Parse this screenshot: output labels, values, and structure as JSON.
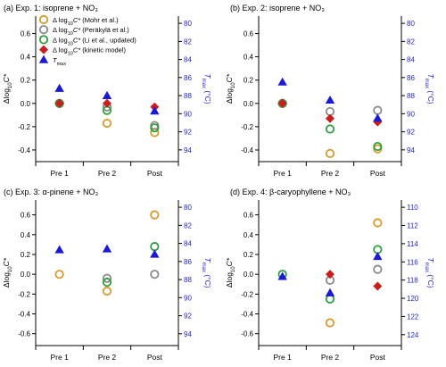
{
  "colors": {
    "mohr": "#d99a2b",
    "perakyla": "#8a8a8a",
    "li": "#2e9e3f",
    "kinetic": "#c81e1e",
    "tmax": "#1a1ad6",
    "right_axis": "#1f1fd6"
  },
  "legend": [
    {
      "key": "mohr",
      "prefix": "Δ log",
      "sub": "10",
      "mid": "C*",
      "suffix": " (Mohr et al.)",
      "marker": "circle"
    },
    {
      "key": "perakyla",
      "prefix": "Δ log",
      "sub": "10",
      "mid": "C*",
      "suffix": " (Peräkylä et al.)",
      "marker": "circle"
    },
    {
      "key": "li",
      "prefix": "Δ log",
      "sub": "10",
      "mid": "C*",
      "suffix": " (Li et al., updated)",
      "marker": "circle"
    },
    {
      "key": "kinetic",
      "prefix": "Δ log",
      "sub": "10",
      "mid": "C*",
      "suffix": " (kinetic model)",
      "marker": "diamond"
    },
    {
      "key": "tmax",
      "prefix": "T",
      "sub": "max",
      "mid": "",
      "suffix": "",
      "marker": "triangle"
    }
  ],
  "axis_labels": {
    "left": {
      "prefix": "Δlog",
      "sub": "10",
      "mid": "C*"
    },
    "right": {
      "prefix": "T",
      "sub": "max",
      "suffix": " (°C)"
    }
  },
  "chart_data": [
    {
      "type": "scatter",
      "title": "(a) Exp. 1: isoprene + NO₃",
      "categories": [
        "Pre 1",
        "Pre 2",
        "Post"
      ],
      "ylim": [
        -0.5,
        0.75
      ],
      "yticks": [
        -0.4,
        -0.2,
        0.0,
        0.2,
        0.4,
        0.6
      ],
      "y2lim": [
        95.3,
        79.2
      ],
      "y2ticks": [
        80,
        82,
        84,
        86,
        88,
        90,
        92,
        94
      ],
      "show_legend": true,
      "series": [
        {
          "key": "mohr",
          "values": [
            0.0,
            -0.17,
            -0.25
          ]
        },
        {
          "key": "perakyla",
          "values": [
            0.0,
            -0.03,
            -0.19
          ]
        },
        {
          "key": "li",
          "values": [
            0.0,
            -0.06,
            -0.21
          ]
        },
        {
          "key": "kinetic",
          "values": [
            0.0,
            0.0,
            -0.03
          ]
        }
      ],
      "tmax": [
        87.2,
        88.0,
        89.7
      ]
    },
    {
      "type": "scatter",
      "title": "(b) Exp. 2: isoprene + NO₃",
      "categories": [
        "Pre 1",
        "Pre 2",
        "Post"
      ],
      "ylim": [
        -0.5,
        0.75
      ],
      "yticks": [
        -0.4,
        -0.2,
        0.0,
        0.2,
        0.4,
        0.6
      ],
      "y2lim": [
        95.3,
        79.2
      ],
      "y2ticks": [
        80,
        82,
        84,
        86,
        88,
        90,
        92,
        94
      ],
      "show_legend": false,
      "series": [
        {
          "key": "mohr",
          "values": [
            0.0,
            -0.43,
            -0.39
          ]
        },
        {
          "key": "perakyla",
          "values": [
            0.0,
            -0.07,
            -0.06
          ]
        },
        {
          "key": "li",
          "values": [
            0.0,
            -0.22,
            -0.37
          ]
        },
        {
          "key": "kinetic",
          "values": [
            0.0,
            -0.13,
            -0.16
          ]
        }
      ],
      "tmax": [
        86.5,
        88.5,
        90.5
      ]
    },
    {
      "type": "scatter",
      "title": "(c) Exp. 3: α-pinene + NO₃",
      "categories": [
        "Pre 1",
        "Pre 2",
        "Post"
      ],
      "ylim": [
        -0.72,
        0.75
      ],
      "yticks": [
        -0.6,
        -0.4,
        -0.2,
        0.0,
        0.2,
        0.4,
        0.6
      ],
      "y2lim": [
        95.3,
        79.2
      ],
      "y2ticks": [
        80,
        82,
        84,
        86,
        88,
        90,
        92,
        94
      ],
      "show_legend": false,
      "series": [
        {
          "key": "mohr",
          "values": [
            0.0,
            -0.17,
            0.6
          ]
        },
        {
          "key": "perakyla",
          "values": [
            null,
            -0.04,
            0.0
          ]
        },
        {
          "key": "li",
          "values": [
            null,
            -0.08,
            0.28
          ]
        },
        {
          "key": "kinetic",
          "values": [
            null,
            null,
            null
          ]
        }
      ],
      "tmax": [
        84.7,
        84.6,
        85.2
      ]
    },
    {
      "type": "scatter",
      "title": "(d) Exp. 4: β-caryophyllene + NO₃",
      "categories": [
        "Pre 1",
        "Pre 2",
        "Post"
      ],
      "ylim": [
        -0.72,
        0.75
      ],
      "yticks": [
        -0.6,
        -0.4,
        -0.2,
        0.0,
        0.2,
        0.4,
        0.6
      ],
      "y2lim": [
        125.2,
        109.2
      ],
      "y2ticks": [
        110,
        112,
        114,
        116,
        118,
        120,
        122,
        124
      ],
      "show_legend": false,
      "series": [
        {
          "key": "mohr",
          "values": [
            null,
            -0.49,
            0.52
          ]
        },
        {
          "key": "perakyla",
          "values": [
            null,
            -0.06,
            0.05
          ]
        },
        {
          "key": "li",
          "values": [
            0.0,
            -0.25,
            0.25
          ]
        },
        {
          "key": "kinetic",
          "values": [
            null,
            0.0,
            -0.12
          ]
        }
      ],
      "tmax": [
        117.6,
        119.4,
        115.4
      ]
    }
  ]
}
